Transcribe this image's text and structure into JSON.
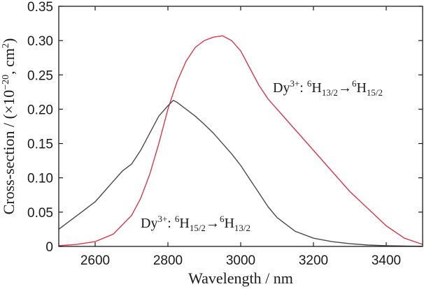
{
  "chart_data": {
    "type": "line",
    "title": "",
    "xlabel": "Wavelength / nm",
    "ylabel": "Cross-section / (×10",
    "ylabel_exp": "−20",
    "ylabel_tail": ", cm",
    "ylabel_unit_exp": "2",
    "ylabel_close": ")",
    "xlim": [
      2500,
      3500
    ],
    "ylim": [
      0,
      0.35
    ],
    "x_ticks": [
      2600,
      2800,
      3000,
      3200,
      3400
    ],
    "x_tick_labels": [
      "2600",
      "2800",
      "3000",
      "3200",
      "3400"
    ],
    "y_ticks": [
      0,
      0.05,
      0.1,
      0.15,
      0.2,
      0.25,
      0.3,
      0.35
    ],
    "y_tick_labels": [
      "0",
      "0.05",
      "0.10",
      "0.15",
      "0.20",
      "0.25",
      "0.30",
      "0.35"
    ],
    "grid": false,
    "series": [
      {
        "color": "#d23a4a",
        "x": [
          2500,
          2550,
          2600,
          2650,
          2700,
          2725,
          2750,
          2775,
          2800,
          2825,
          2850,
          2875,
          2900,
          2925,
          2950,
          2975,
          3000,
          3025,
          3050,
          3075,
          3100,
          3150,
          3200,
          3250,
          3300,
          3350,
          3400,
          3450,
          3500
        ],
        "y": [
          0.001,
          0.003,
          0.007,
          0.018,
          0.045,
          0.07,
          0.105,
          0.15,
          0.2,
          0.24,
          0.27,
          0.29,
          0.3,
          0.305,
          0.307,
          0.3,
          0.285,
          0.26,
          0.235,
          0.215,
          0.2,
          0.17,
          0.14,
          0.11,
          0.08,
          0.055,
          0.03,
          0.012,
          0.003
        ]
      },
      {
        "color": "#4a4a4a",
        "x": [
          2500,
          2525,
          2550,
          2575,
          2600,
          2625,
          2650,
          2675,
          2700,
          2725,
          2750,
          2775,
          2800,
          2815,
          2825,
          2850,
          2875,
          2900,
          2925,
          2950,
          2975,
          3000,
          3025,
          3050,
          3075,
          3100,
          3150,
          3200,
          3250,
          3300,
          3350,
          3400,
          3450,
          3500
        ],
        "y": [
          0.025,
          0.035,
          0.045,
          0.055,
          0.065,
          0.08,
          0.095,
          0.11,
          0.12,
          0.14,
          0.165,
          0.19,
          0.205,
          0.213,
          0.21,
          0.2,
          0.19,
          0.178,
          0.165,
          0.15,
          0.135,
          0.118,
          0.098,
          0.078,
          0.058,
          0.042,
          0.022,
          0.012,
          0.007,
          0.004,
          0.002,
          0.001,
          0.0005,
          0.0002
        ]
      }
    ],
    "annotations": [
      {
        "series": 0,
        "base": "Dy",
        "charge": "3+",
        "sep": ": ",
        "sup1": "6",
        "term1": "H",
        "sub1": "13/2",
        "arrow": "→",
        "sup2": "6",
        "term2": "H",
        "sub2": "15/2"
      },
      {
        "series": 1,
        "base": "Dy",
        "charge": "3+",
        "sep": ": ",
        "sup1": "6",
        "term1": "H",
        "sub1": "15/2",
        "arrow": "→",
        "sup2": "6",
        "term2": "H",
        "sub2": "13/2"
      }
    ]
  }
}
